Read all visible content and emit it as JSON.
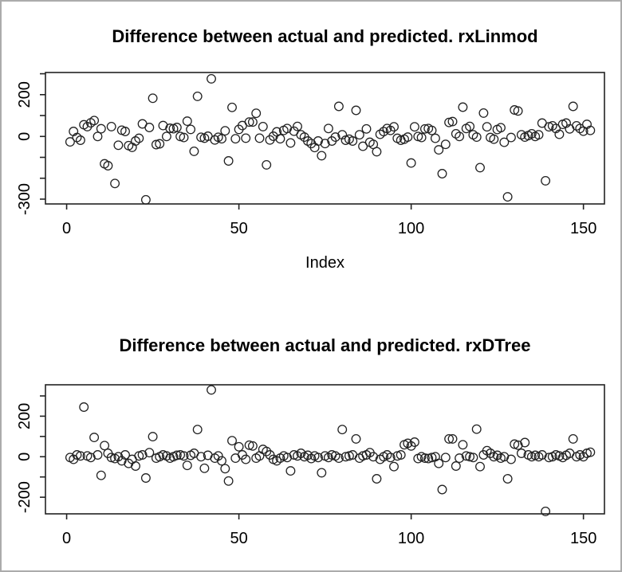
{
  "window": {
    "bg": "#ffffff",
    "border_color": "#ababab",
    "axis_color": "#222222",
    "point_color": "#222222"
  },
  "chart_data": [
    {
      "type": "scatter",
      "title": "Difference between actual and predicted. rxLinmod",
      "xlabel": "Index",
      "ylabel": "",
      "marker": "open-circle",
      "grid": false,
      "xlim": [
        -6.15,
        156.1
      ],
      "ylim": [
        -323,
        306
      ],
      "x_ticks": [
        0,
        50,
        100,
        150
      ],
      "x_tick_labels": [
        "0",
        "50",
        "100",
        "150"
      ],
      "y_ticks": [
        300,
        200,
        100,
        0,
        -100,
        -200,
        -300
      ],
      "y_tick_labels": [
        "",
        "200",
        "",
        "0",
        "",
        "",
        "-300"
      ],
      "x_start_index": 1,
      "values": [
        -26,
        24,
        -5,
        -18,
        56,
        47,
        65,
        76,
        0,
        37,
        -131,
        -140,
        47,
        -225,
        -42,
        30,
        24,
        -44,
        -52,
        -22,
        -9,
        60,
        -303,
        43,
        183,
        -39,
        -35,
        52,
        0,
        39,
        37,
        43,
        0,
        -5,
        73,
        34,
        -71,
        192,
        -4,
        -8,
        1,
        276,
        -17,
        -4,
        -11,
        27,
        -117,
        139,
        -11,
        34,
        52,
        -8,
        69,
        69,
        111,
        -8,
        47,
        -136,
        -17,
        1,
        22,
        -11,
        29,
        38,
        -31,
        25,
        48,
        8,
        -3,
        -22,
        -34,
        -53,
        -22,
        -92,
        -34,
        38,
        -22,
        -3,
        144,
        8,
        -18,
        -13,
        -22,
        125,
        8,
        -47,
        36,
        -28,
        -38,
        -73,
        10,
        23,
        38,
        29,
        46,
        -9,
        -18,
        -13,
        -3,
        -127,
        46,
        0,
        -5,
        36,
        38,
        29,
        -9,
        -64,
        -178,
        -38,
        67,
        71,
        13,
        0,
        140,
        38,
        48,
        8,
        -3,
        -149,
        112,
        46,
        -5,
        -13,
        33,
        42,
        -28,
        -289,
        -5,
        127,
        122,
        8,
        -3,
        4,
        13,
        0,
        8,
        64,
        -212,
        46,
        51,
        38,
        10,
        58,
        64,
        36,
        144,
        51,
        38,
        25,
        58,
        29
      ]
    },
    {
      "type": "scatter",
      "title": "Difference between actual and predicted. rxDTree",
      "xlabel": "",
      "ylabel": "",
      "marker": "open-circle",
      "grid": false,
      "xlim": [
        -6.15,
        156.1
      ],
      "ylim": [
        -282,
        355
      ],
      "x_ticks": [
        0,
        50,
        100,
        150
      ],
      "x_tick_labels": [
        "0",
        "50",
        "100",
        "150"
      ],
      "y_ticks": [
        300,
        200,
        100,
        0,
        -100,
        -200
      ],
      "y_tick_labels": [
        "",
        "200",
        "",
        "0",
        "",
        "-200"
      ],
      "x_start_index": 1,
      "values": [
        -4,
        -13,
        9,
        4,
        245,
        4,
        -4,
        95,
        9,
        -92,
        55,
        17,
        -4,
        -9,
        0,
        -20,
        9,
        -33,
        -13,
        -46,
        4,
        9,
        -105,
        20,
        99,
        -7,
        0,
        9,
        4,
        -7,
        0,
        7,
        9,
        4,
        -43,
        7,
        17,
        134,
        0,
        -57,
        7,
        330,
        -7,
        4,
        -20,
        -59,
        -120,
        79,
        -7,
        49,
        9,
        -13,
        57,
        53,
        -7,
        4,
        36,
        26,
        9,
        -13,
        -20,
        -7,
        4,
        -4,
        -70,
        9,
        4,
        17,
        0,
        7,
        -9,
        4,
        -4,
        -79,
        4,
        -4,
        9,
        4,
        -7,
        134,
        0,
        4,
        9,
        88,
        -7,
        4,
        9,
        20,
        0,
        -109,
        -13,
        0,
        9,
        -4,
        -49,
        4,
        9,
        59,
        66,
        53,
        72,
        -9,
        0,
        -7,
        -9,
        -4,
        0,
        -33,
        -162,
        -4,
        88,
        88,
        -46,
        -7,
        59,
        4,
        0,
        -4,
        136,
        -49,
        9,
        30,
        17,
        0,
        7,
        -7,
        0,
        -109,
        -13,
        62,
        57,
        17,
        70,
        9,
        0,
        7,
        0,
        9,
        -270,
        -4,
        0,
        9,
        4,
        -4,
        7,
        17,
        88,
        0,
        9,
        0,
        17,
        22
      ]
    }
  ]
}
